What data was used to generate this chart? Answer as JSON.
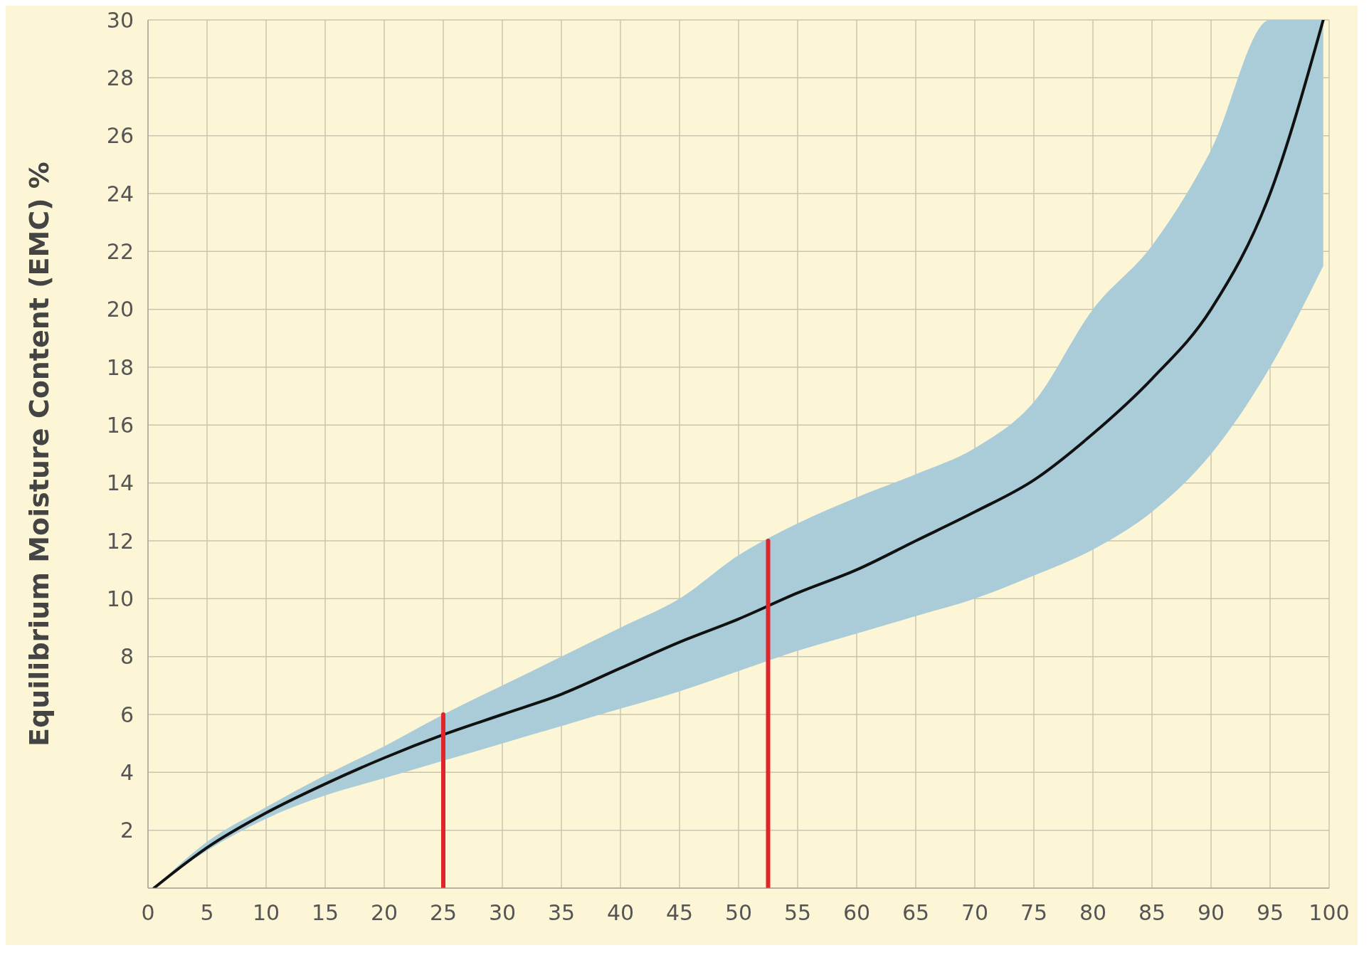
{
  "chart_data": {
    "type": "line",
    "ylabel": "Equilibrium Moisture Content (EMC) %",
    "xlim": [
      0,
      100
    ],
    "ylim": [
      0,
      30
    ],
    "xticks": [
      0,
      5,
      10,
      15,
      20,
      25,
      30,
      35,
      40,
      45,
      50,
      55,
      60,
      65,
      70,
      75,
      80,
      85,
      90,
      95,
      100
    ],
    "yticks": [
      {
        "value": 0,
        "label": null
      },
      2,
      4,
      6,
      8,
      10,
      12,
      14,
      16,
      18,
      20,
      22,
      24,
      26,
      28,
      30
    ],
    "grid": true,
    "marker": "none",
    "line_style": "solid",
    "series": [
      {
        "color": "#111111",
        "x": [
          0.5,
          5,
          10,
          15,
          20,
          25,
          30,
          35,
          40,
          45,
          50,
          55,
          60,
          65,
          70,
          75,
          80,
          85,
          90,
          95,
          99.5
        ],
        "values": [
          0,
          1.4,
          2.6,
          3.6,
          4.5,
          5.3,
          6.0,
          6.7,
          7.6,
          8.5,
          9.3,
          10.2,
          11.0,
          12.0,
          13.0,
          14.1,
          15.7,
          17.6,
          20.0,
          24.0,
          30.0
        ],
        "lower": [
          0,
          1.3,
          2.4,
          3.2,
          3.8,
          4.4,
          5.0,
          5.6,
          6.2,
          6.8,
          7.5,
          8.2,
          8.8,
          9.4,
          10.0,
          10.8,
          11.7,
          13.0,
          15.0,
          18.0,
          21.5
        ],
        "upper": [
          0,
          1.6,
          2.8,
          3.9,
          4.9,
          6.0,
          7.0,
          8.0,
          9.0,
          10.0,
          11.5,
          12.6,
          13.5,
          14.3,
          15.2,
          16.8,
          20.0,
          22.2,
          25.5,
          30.0,
          30.0
        ]
      },
      {
        "color": "#e0242a",
        "x": [
          25,
          25
        ],
        "values": [
          0,
          6
        ]
      },
      {
        "color": "#e0242a",
        "x": [
          52.5,
          52.5
        ],
        "values": [
          0,
          12
        ]
      }
    ]
  }
}
